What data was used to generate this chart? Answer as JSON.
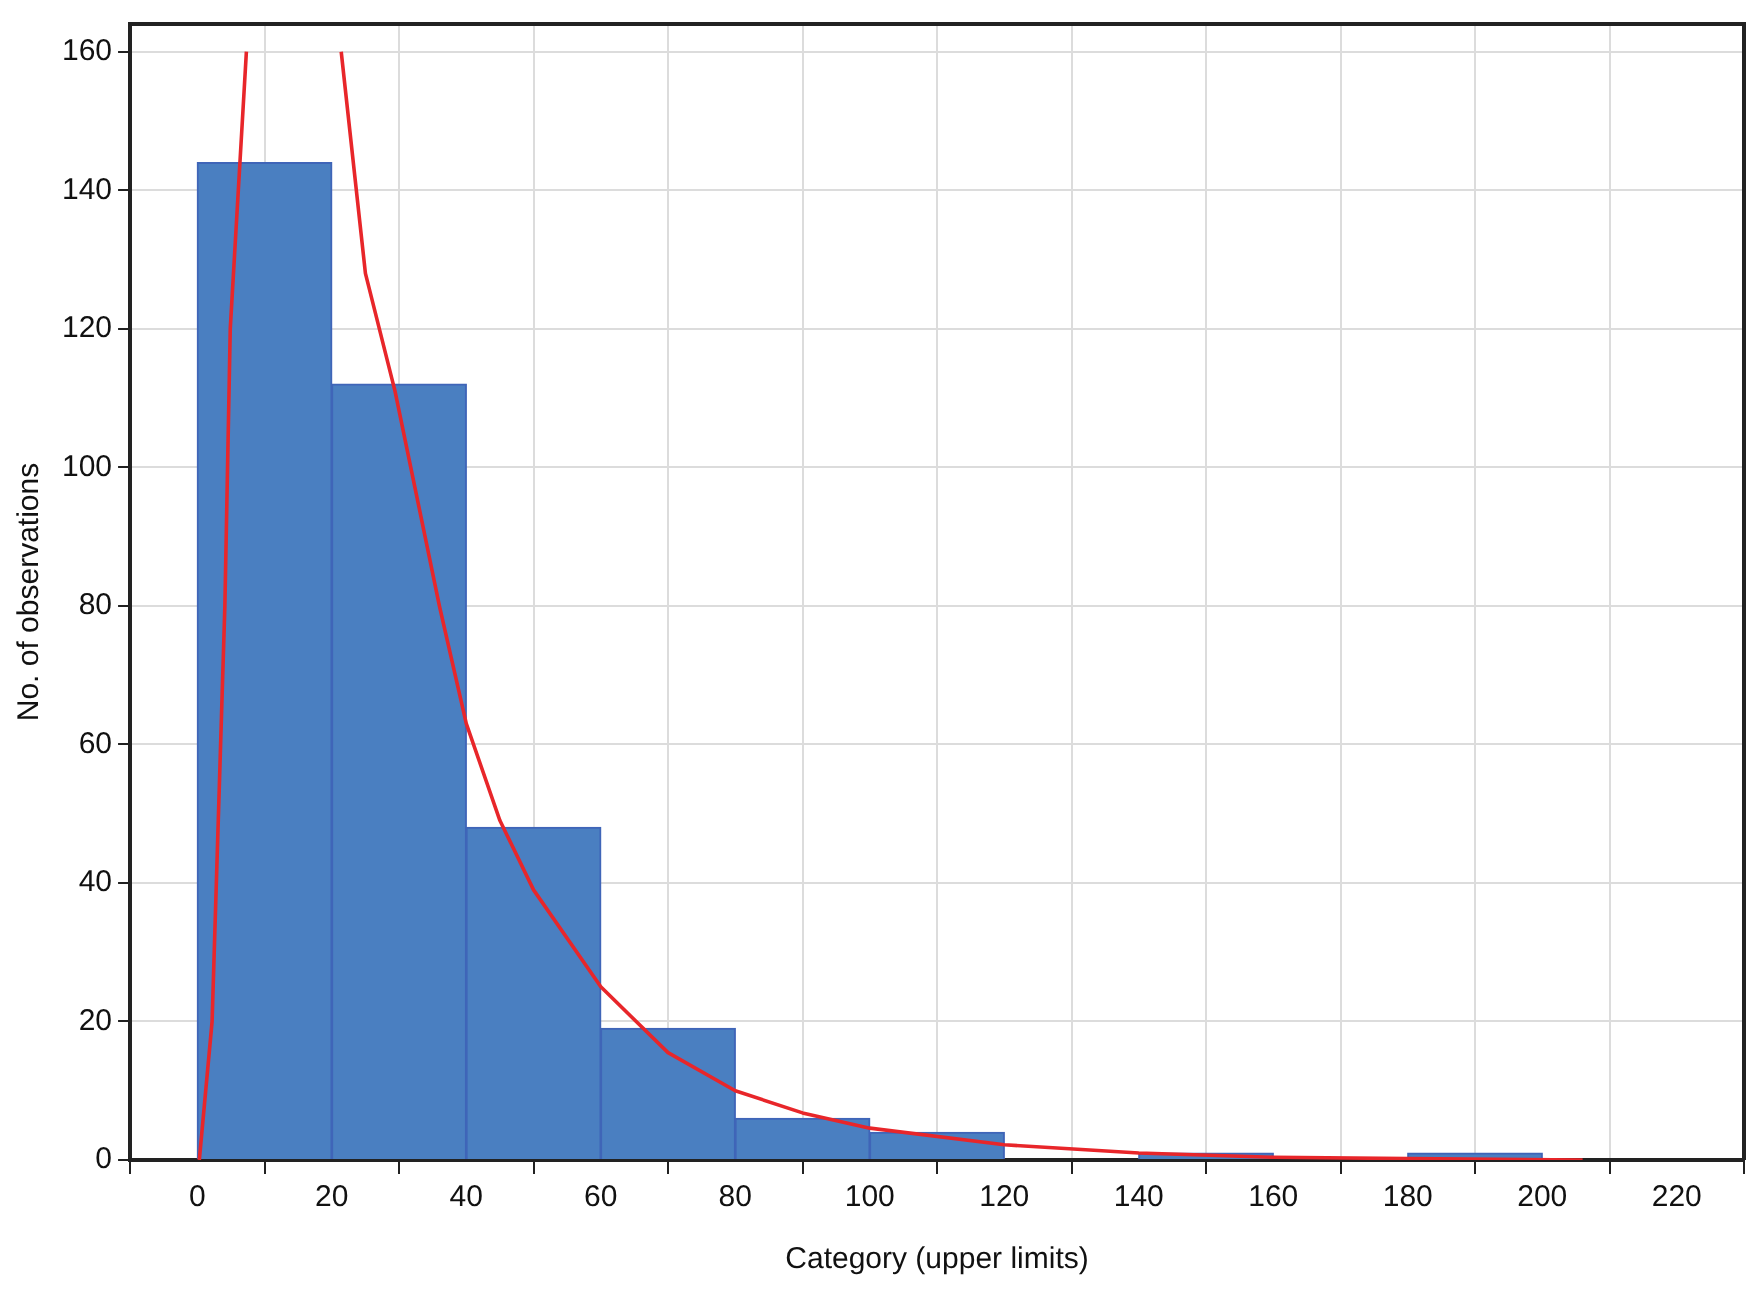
{
  "chart_data": {
    "type": "histogram",
    "xlabel": "Category (upper limits)",
    "ylabel": "No. of observations",
    "bins": [
      0,
      20,
      40,
      60,
      80,
      100,
      120,
      140,
      160,
      180,
      200
    ],
    "values": [
      144,
      112,
      48,
      19,
      6,
      4,
      0,
      1,
      0,
      1
    ],
    "color": "#4a7fc1",
    "series": [
      {
        "type": "line",
        "color": "#e8262a",
        "x": [
          0.3,
          2.2,
          4.1,
          4.9,
          7.3,
          14,
          21.4,
          25,
          29.4,
          36,
          40,
          45,
          50,
          60,
          70,
          80,
          90,
          100,
          120,
          140,
          160,
          180,
          206
        ],
        "values": [
          0,
          20,
          80,
          120,
          160,
          null,
          160,
          128,
          111,
          80,
          63,
          49,
          39,
          25,
          15.5,
          10,
          6.8,
          4.6,
          2.2,
          1,
          0.4,
          0.2,
          0
        ]
      }
    ],
    "xlim": [
      -10,
      230
    ],
    "xticks": [
      0,
      20,
      40,
      60,
      80,
      100,
      120,
      140,
      160,
      180,
      200,
      220
    ],
    "ylim": [
      0,
      164
    ],
    "yticks": [
      0,
      20,
      40,
      60,
      80,
      100,
      120,
      140,
      160
    ],
    "grid": true
  }
}
